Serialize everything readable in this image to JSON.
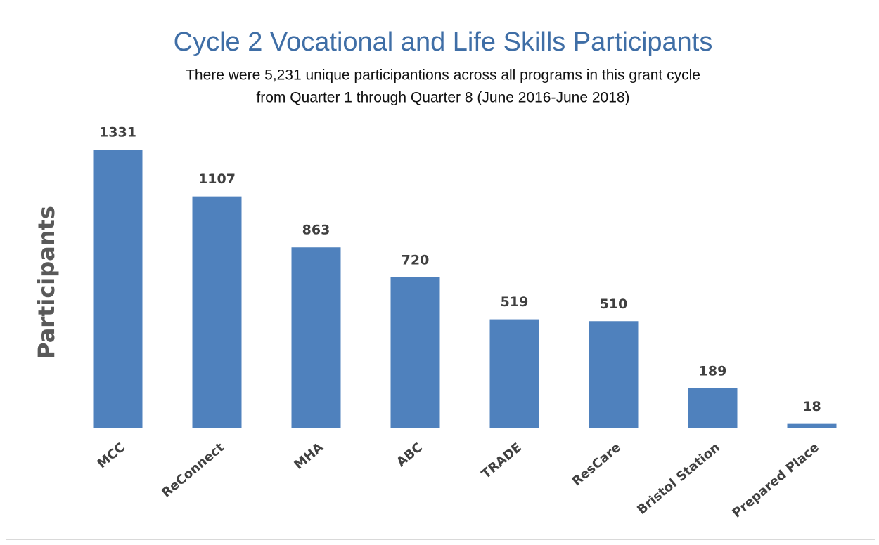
{
  "chart_data": {
    "type": "bar",
    "title": "Cycle 2 Vocational and Life Skills Participants",
    "subtitle": [
      "There were 5,231 unique participantions across all programs in this grant cycle",
      "from Quarter 1 through Quarter 8 (June 2016-June 2018)"
    ],
    "y_label": "Participants",
    "categories": [
      "MCC",
      "ReConnect",
      "MHA",
      "ABC",
      "TRADE",
      "ResCare",
      "Bristol Station",
      "Prepared Place"
    ],
    "values": [
      1331,
      1107,
      863,
      720,
      519,
      510,
      189,
      18
    ],
    "color": "#4f81bd"
  }
}
